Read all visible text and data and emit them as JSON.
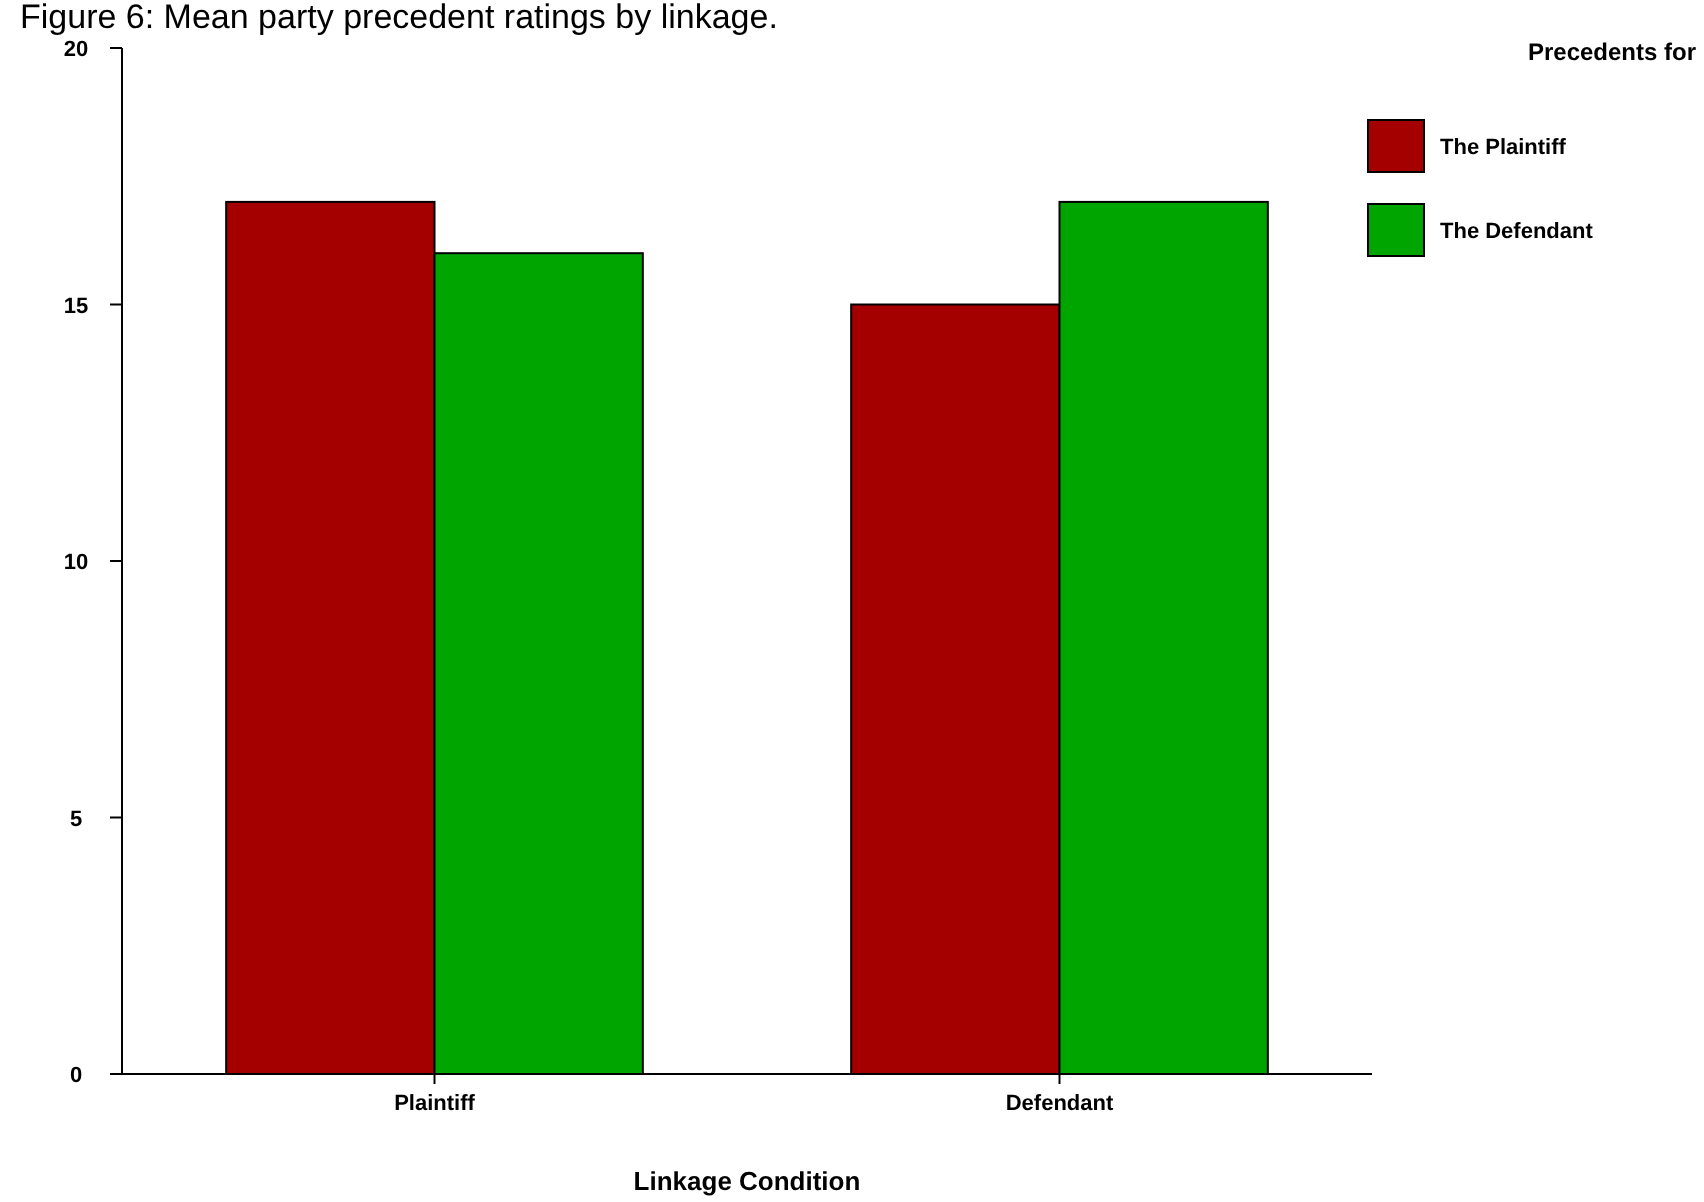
{
  "chart_data": {
    "type": "bar",
    "title": "Figure 6:  Mean party precedent ratings by linkage.",
    "xlabel": "Linkage Condition",
    "legend_title": "Precedents for",
    "categories": [
      "Plaintiff",
      "Defendant"
    ],
    "series": [
      {
        "name": "The Plaintiff",
        "color": "#a50000",
        "values": [
          17,
          15
        ]
      },
      {
        "name": "The Defendant",
        "color": "#00a500",
        "values": [
          16,
          17
        ]
      }
    ],
    "ylim": [
      0,
      20
    ],
    "yticks": [
      0,
      5,
      10,
      15,
      20
    ],
    "grid": false,
    "legend": "top right"
  }
}
